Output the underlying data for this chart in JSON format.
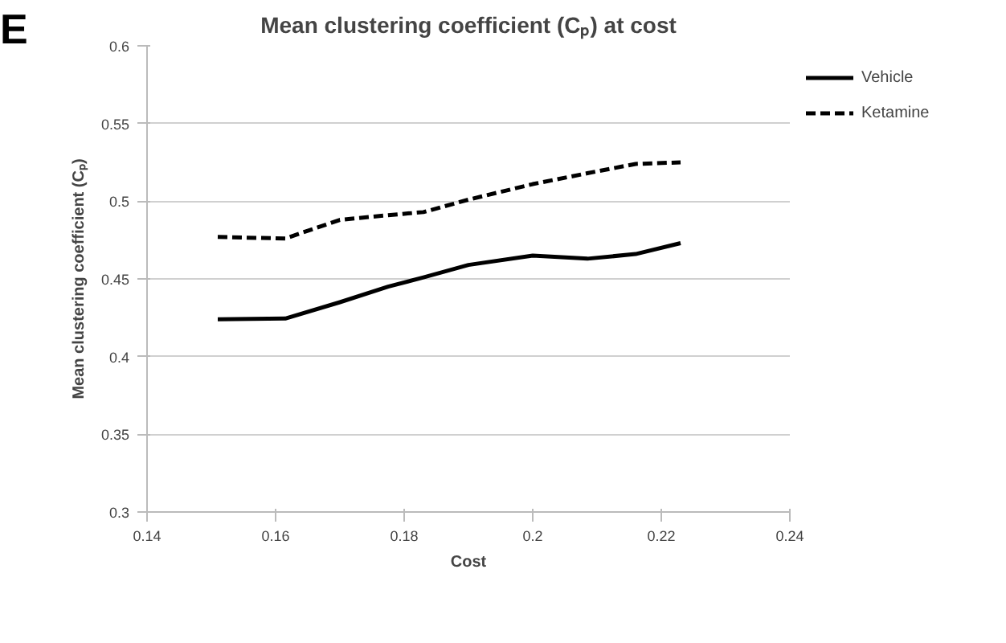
{
  "chart_data": {
    "type": "line",
    "title": "Mean clustering coefficient (Cₚ) at cost",
    "xlabel": "Cost",
    "ylabel": "Mean clustering coefficient (Cₚ)",
    "annotations": [
      "E"
    ],
    "series": [
      {
        "name": "Vehicle",
        "color": "#000000",
        "line_style": "solid",
        "x": [
          0.151,
          0.1615,
          0.17,
          0.1775,
          0.183,
          0.19,
          0.2,
          0.2085,
          0.216,
          0.223
        ],
        "values": [
          0.424,
          0.4245,
          0.435,
          0.445,
          0.451,
          0.459,
          0.465,
          0.463,
          0.466,
          0.473
        ]
      },
      {
        "name": "Ketamine",
        "color": "#000000",
        "line_style": "dashed",
        "x": [
          0.151,
          0.1615,
          0.17,
          0.1775,
          0.183,
          0.19,
          0.2,
          0.2085,
          0.216,
          0.223
        ],
        "values": [
          0.477,
          0.476,
          0.488,
          0.491,
          0.493,
          0.501,
          0.511,
          0.518,
          0.524,
          0.525
        ]
      }
    ],
    "xlim": [
      0.14,
      0.24
    ],
    "xticks": [
      0.14,
      0.16,
      0.18,
      0.2,
      0.22,
      0.24
    ],
    "ylim": [
      0.3,
      0.6
    ],
    "yticks": [
      0.3,
      0.35,
      0.4,
      0.45,
      0.5,
      0.55,
      0.6
    ],
    "grid": "y",
    "legend": "right",
    "marker": "none"
  }
}
